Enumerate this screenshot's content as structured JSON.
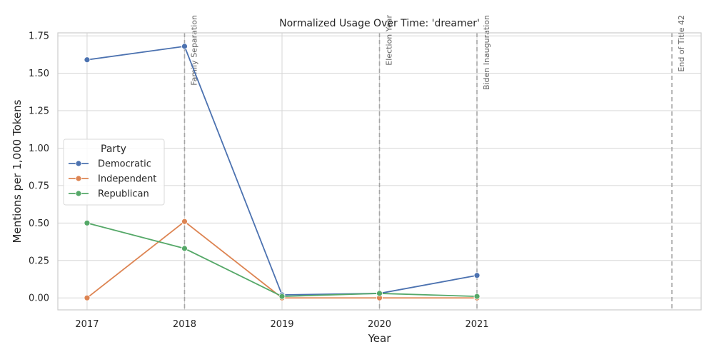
{
  "chart_data": {
    "type": "line",
    "title": "Normalized Usage Over Time: 'dreamer'",
    "xlabel": "Year",
    "ylabel": "Mentions per 1,000 Tokens",
    "x": [
      2017,
      2018,
      2019,
      2020,
      2021
    ],
    "x_ticks": [
      "2017",
      "2018",
      "2019",
      "2020",
      "2021"
    ],
    "xlim": [
      2016.7,
      2023.3
    ],
    "y_ticks": [
      "0.00",
      "0.25",
      "0.50",
      "0.75",
      "1.00",
      "1.25",
      "1.50",
      "1.75"
    ],
    "y_tick_values": [
      0,
      0.25,
      0.5,
      0.75,
      1.0,
      1.25,
      1.5,
      1.75
    ],
    "ylim": [
      -0.08,
      1.77
    ],
    "grid": true,
    "legend": {
      "title": "Party",
      "position": "center-left"
    },
    "series": [
      {
        "name": "Democratic",
        "color": "#4c72b0",
        "values": [
          1.59,
          1.68,
          0.02,
          0.03,
          0.15
        ]
      },
      {
        "name": "Independent",
        "color": "#dd8452",
        "values": [
          0.0,
          0.51,
          0.0,
          0.0,
          0.0
        ]
      },
      {
        "name": "Republican",
        "color": "#55a868",
        "values": [
          0.5,
          0.33,
          0.01,
          0.03,
          0.01
        ]
      }
    ],
    "annotations": [
      {
        "x": 2018.0,
        "label": "Family Separation"
      },
      {
        "x": 2020.0,
        "label": "Election Year"
      },
      {
        "x": 2021.0,
        "label": "Biden Inauguration"
      },
      {
        "x": 2023.0,
        "label": "End of Title 42"
      }
    ]
  }
}
